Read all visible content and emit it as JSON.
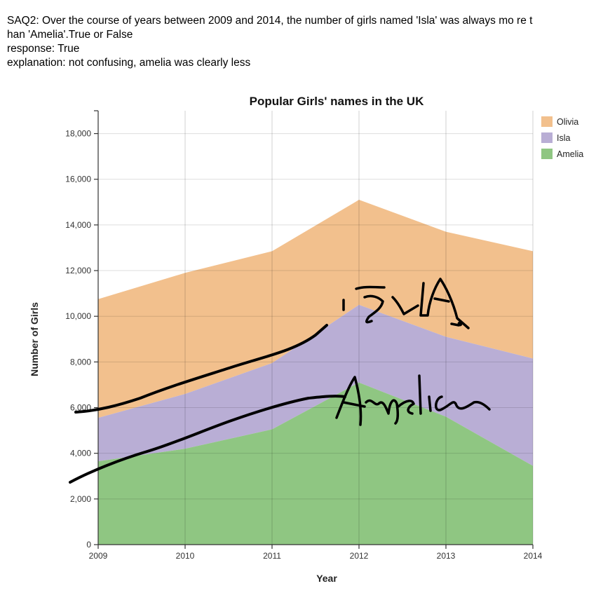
{
  "header": {
    "question": "SAQ2: Over the course of years between 2009 and 2014, the number of girls named 'Isla' was always mo re than 'Amelia'.True or False",
    "response": "response: True",
    "explanation": "explanation: not confusing, amelia was clearly less"
  },
  "chart_data": {
    "type": "area",
    "title": "Popular Girls' names in the UK",
    "xlabel": "Year",
    "ylabel": "Number of Girls",
    "x": [
      2009,
      2010,
      2011,
      2012,
      2013,
      2014
    ],
    "x_tick_labels": [
      "2009",
      "2010",
      "2011",
      "2012",
      "2013",
      "2014"
    ],
    "ylim": [
      0,
      19000
    ],
    "y_ticks": [
      0,
      2000,
      4000,
      6000,
      8000,
      10000,
      12000,
      14000,
      16000,
      18000
    ],
    "y_tick_labels": [
      "0",
      "2,000",
      "4,000",
      "6,000",
      "8,000",
      "10,000",
      "12,000",
      "14,000",
      "16,000",
      "18,000"
    ],
    "stacked": true,
    "grid": true,
    "legend_position": "top-right",
    "series": [
      {
        "name": "Olivia",
        "color": "#f2c08d",
        "values": [
          5200,
          5300,
          4900,
          4600,
          4600,
          4700
        ]
      },
      {
        "name": "Isla",
        "color": "#b9aed5",
        "values": [
          1900,
          2400,
          2900,
          3400,
          3500,
          4700
        ]
      },
      {
        "name": "Amelia",
        "color": "#8fc682",
        "values": [
          3650,
          4200,
          5050,
          7100,
          5600,
          3450
        ]
      }
    ],
    "annotations": [
      {
        "type": "handwritten",
        "text": "Isla"
      },
      {
        "type": "handwritten",
        "text": "Amelia"
      }
    ]
  }
}
